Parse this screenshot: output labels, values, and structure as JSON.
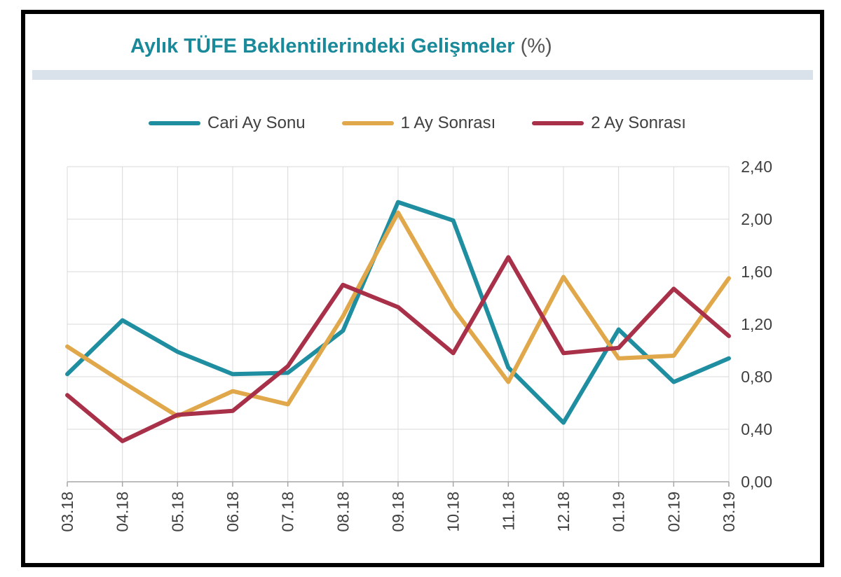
{
  "chart_data": {
    "type": "line",
    "title": "Aylık TÜFE Beklentilerindeki Gelişmeler",
    "title_unit": "(%)",
    "title_color": "#1a8a9a",
    "categories": [
      "03.18",
      "04.18",
      "05.18",
      "06.18",
      "07.18",
      "08.18",
      "09.18",
      "10.18",
      "11.18",
      "12.18",
      "01.19",
      "02.19",
      "03.19"
    ],
    "series": [
      {
        "name": "Cari Ay Sonu",
        "color": "#1f8ea0",
        "values": [
          0.82,
          1.23,
          0.99,
          0.82,
          0.83,
          1.15,
          2.13,
          1.99,
          0.87,
          0.45,
          1.16,
          0.76,
          0.94
        ]
      },
      {
        "name": "1 Ay Sonrası",
        "color": "#e0a84a",
        "values": [
          1.03,
          0.76,
          0.5,
          0.69,
          0.59,
          1.26,
          2.05,
          1.32,
          0.76,
          1.56,
          0.94,
          0.96,
          1.55
        ]
      },
      {
        "name": "2 Ay Sonrası",
        "color": "#a83048",
        "values": [
          0.66,
          0.31,
          0.51,
          0.54,
          0.88,
          1.5,
          1.33,
          0.98,
          1.71,
          0.98,
          1.02,
          1.47,
          1.11
        ]
      }
    ],
    "ylim": [
      0,
      2.4
    ],
    "yticks": [
      "0,00",
      "0,40",
      "0,80",
      "1,20",
      "1,60",
      "2,00",
      "2,40"
    ],
    "ytick_values": [
      0,
      0.4,
      0.8,
      1.2,
      1.6,
      2.0,
      2.4
    ],
    "y_axis_side": "right",
    "grid": true,
    "legend_position": "top"
  }
}
